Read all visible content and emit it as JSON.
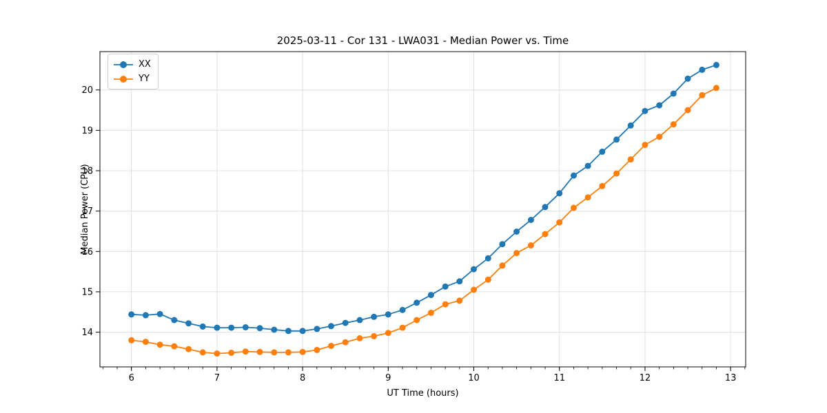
{
  "chart_data": {
    "type": "line",
    "title": "2025-03-11 - Cor 131 - LWA031 - Median Power vs. Time",
    "xlabel": "UT Time (hours)",
    "ylabel": "Median Power (CPU)",
    "xlim": [
      5.632,
      13.176
    ],
    "ylim": [
      13.14,
      20.95
    ],
    "xticks": [
      6,
      7,
      8,
      9,
      10,
      11,
      12,
      13
    ],
    "yticks": [
      14,
      15,
      16,
      17,
      18,
      19,
      20
    ],
    "x_minor_interval": 0.1666667,
    "grid": true,
    "legend_position": "upper-left",
    "x": [
      6.0,
      6.167,
      6.333,
      6.5,
      6.667,
      6.833,
      7.0,
      7.167,
      7.333,
      7.5,
      7.667,
      7.833,
      8.0,
      8.167,
      8.333,
      8.5,
      8.667,
      8.833,
      9.0,
      9.167,
      9.333,
      9.5,
      9.667,
      9.833,
      10.0,
      10.167,
      10.333,
      10.5,
      10.667,
      10.833,
      11.0,
      11.167,
      11.333,
      11.5,
      11.667,
      11.833,
      12.0,
      12.167,
      12.333,
      12.5,
      12.667,
      12.833
    ],
    "series": [
      {
        "name": "XX",
        "color": "#1f77b4",
        "values": [
          14.44,
          14.42,
          14.45,
          14.3,
          14.22,
          14.14,
          14.11,
          14.11,
          14.12,
          14.1,
          14.06,
          14.03,
          14.03,
          14.08,
          14.15,
          14.23,
          14.3,
          14.38,
          14.44,
          14.55,
          14.73,
          14.92,
          15.13,
          15.26,
          15.56,
          15.83,
          16.18,
          16.49,
          16.78,
          17.1,
          17.44,
          17.88,
          18.12,
          18.47,
          18.77,
          19.12,
          19.48,
          19.62,
          19.91,
          20.28,
          20.5,
          20.62
        ]
      },
      {
        "name": "YY",
        "color": "#ff7f0e",
        "values": [
          13.8,
          13.76,
          13.69,
          13.65,
          13.58,
          13.5,
          13.47,
          13.49,
          13.52,
          13.51,
          13.5,
          13.5,
          13.51,
          13.56,
          13.66,
          13.75,
          13.85,
          13.9,
          13.98,
          14.11,
          14.3,
          14.48,
          14.69,
          14.78,
          15.05,
          15.3,
          15.65,
          15.96,
          16.15,
          16.43,
          16.72,
          17.08,
          17.34,
          17.62,
          17.93,
          18.28,
          18.64,
          18.84,
          19.15,
          19.5,
          19.87,
          20.05
        ]
      }
    ]
  },
  "style": {
    "grid_color": "#e0e0e0",
    "spine_color": "#000000",
    "tick_color": "#000000",
    "text_color": "#000000",
    "background": "#ffffff"
  }
}
